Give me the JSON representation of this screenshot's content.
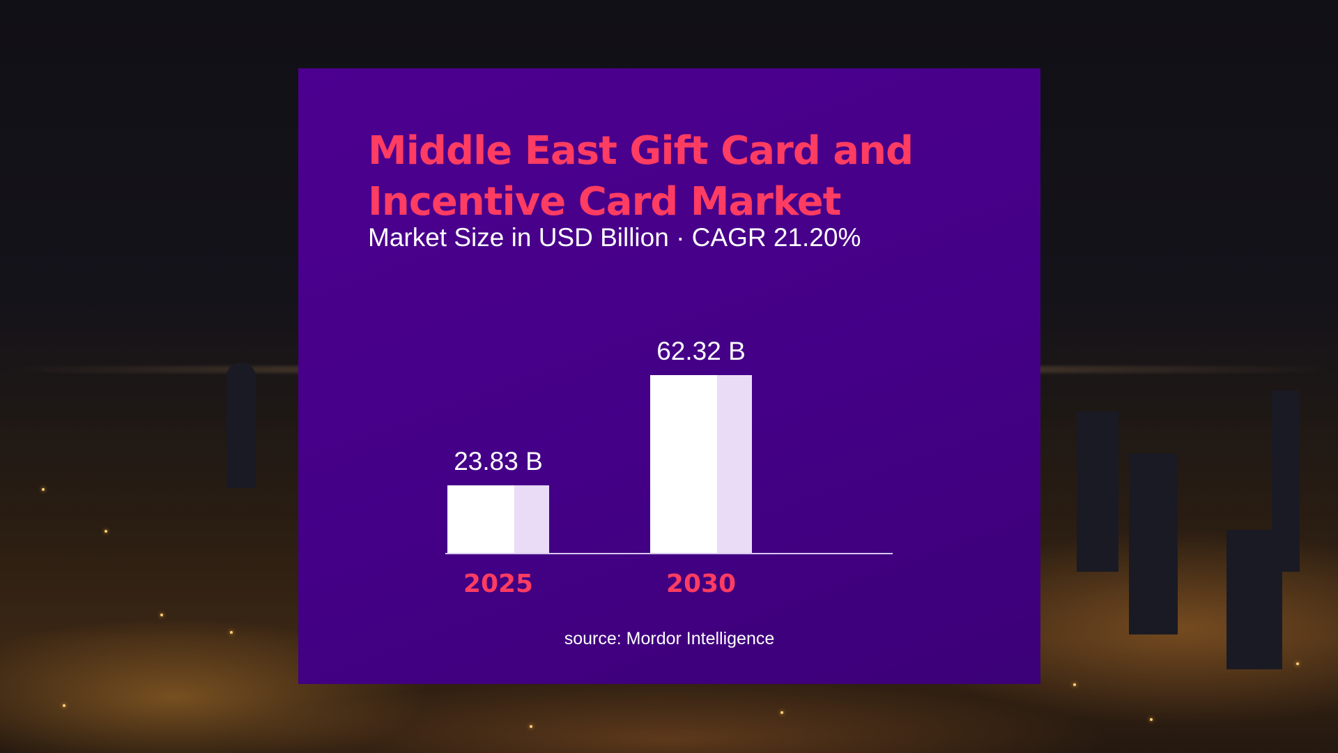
{
  "card": {
    "title": "Middle East Gift Card and Incentive Card Market",
    "subtitle": "Market Size in USD Billion · CAGR 21.20%",
    "source": "source: Mordor Intelligence"
  },
  "colors": {
    "card_bg": "#48008a",
    "title": "#ff3c62",
    "bar_main": "#ffffff",
    "bar_shade": "#eadcf6",
    "axis": "#d8c8ee",
    "tick_label": "#ff3c62",
    "value_label": "#ffffff"
  },
  "chart_data": {
    "type": "bar",
    "title": "Middle East Gift Card and Incentive Card Market",
    "subtitle": "Market Size in USD Billion · CAGR 21.20%",
    "categories": [
      "2025",
      "2030"
    ],
    "values": [
      23.83,
      62.32
    ],
    "value_labels": [
      "23.83 B",
      "62.32 B"
    ],
    "ylim": [
      0,
      62.32
    ],
    "grid": false,
    "legend": "none"
  }
}
